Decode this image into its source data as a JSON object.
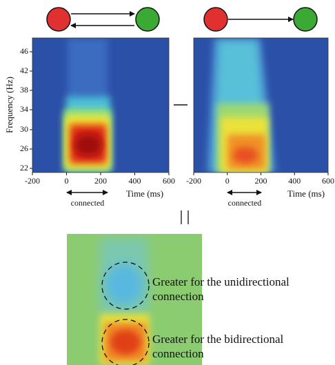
{
  "panels": [
    {
      "ylabel": "Frequency (Hz)",
      "yticks": [
        46,
        42,
        38,
        34,
        30,
        26,
        22
      ],
      "xticks": [
        -200,
        0,
        200,
        400,
        600
      ],
      "xlabel": "Time (ms)",
      "annotation": "connected"
    },
    {
      "xticks": [
        -200,
        0,
        200,
        400,
        600
      ],
      "xlabel": "Time (ms)",
      "annotation": "connected"
    }
  ],
  "difference": {
    "labels": [
      [
        "Greater for the unidirectional",
        "connection"
      ],
      [
        "Greater for the bidirectional",
        "connection"
      ]
    ]
  }
}
